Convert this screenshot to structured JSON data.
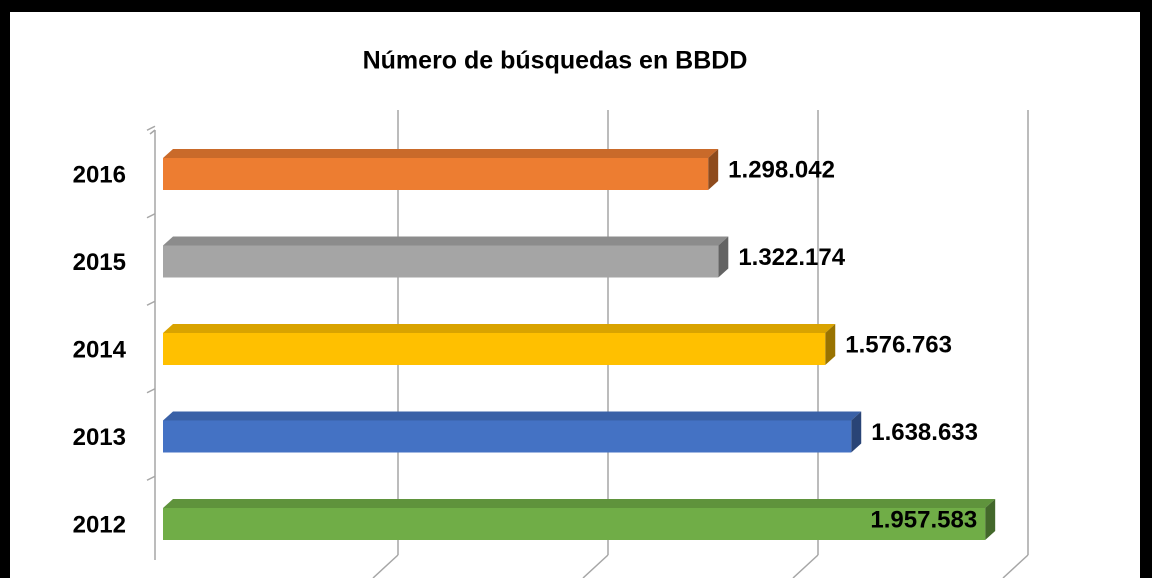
{
  "chart_data": {
    "type": "bar3d_horizontal",
    "title": "Número de búsquedas en BBDD",
    "categories": [
      "2016",
      "2015",
      "2014",
      "2013",
      "2012"
    ],
    "values": [
      1298042,
      1322174,
      1576763,
      1638633,
      1957583
    ],
    "value_labels": [
      "1.298.042",
      "1.322.174",
      "1.576.763",
      "1.638.633",
      "1.957.583"
    ],
    "colors": [
      "#ed7d31",
      "#a5a5a5",
      "#ffc000",
      "#4472c4",
      "#70ad47"
    ],
    "xlim": [
      0,
      2000000
    ],
    "xticks": [
      0,
      500000,
      1000000,
      1500000,
      2000000
    ],
    "grid": true
  }
}
